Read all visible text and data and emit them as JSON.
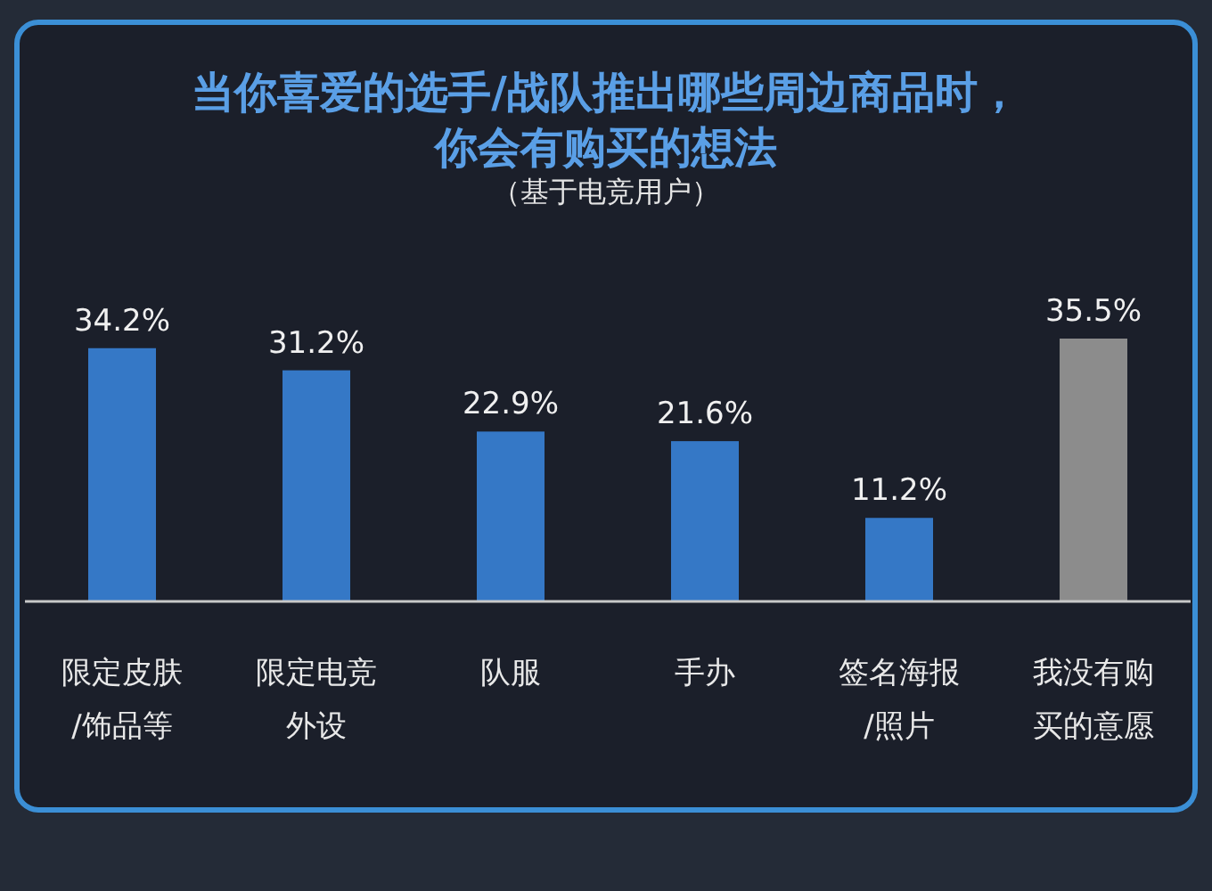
{
  "chart_data": {
    "type": "bar",
    "title": "当你喜爱的选手/战队推出哪些周边商品时，你会有购买的想法",
    "subtitle": "（基于电竞用户）",
    "categories": [
      "限定皮肤/饰品等",
      "限定电竞外设",
      "队服",
      "手办",
      "签名海报/照片",
      "我没有购买的意愿"
    ],
    "values": [
      34.2,
      31.2,
      22.9,
      21.6,
      11.2,
      35.5
    ],
    "colors": [
      "#3578c6",
      "#3578c6",
      "#3578c6",
      "#3578c6",
      "#3578c6",
      "#8c8c8c"
    ],
    "value_labels": [
      "34.2%",
      "31.2%",
      "22.9%",
      "21.6%",
      "11.2%",
      "35.5%"
    ]
  }
}
